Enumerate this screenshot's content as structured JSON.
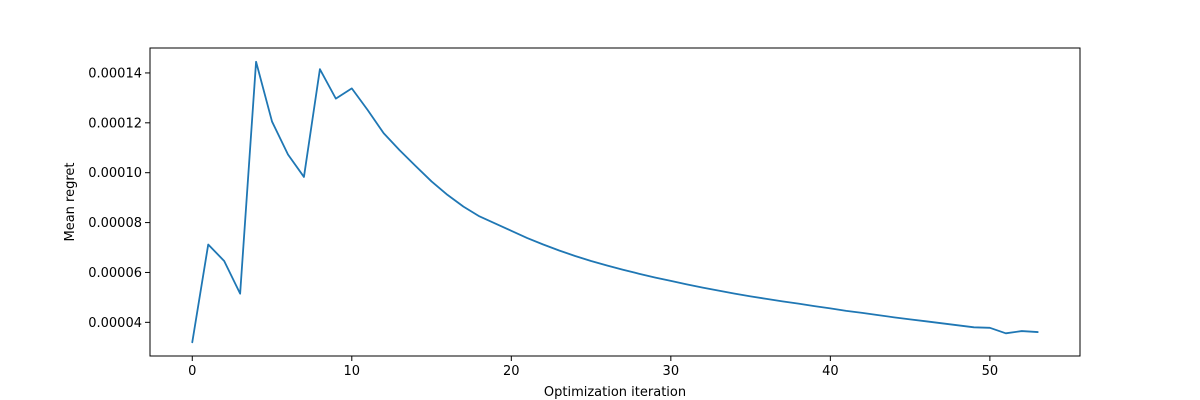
{
  "chart_data": {
    "type": "line",
    "title": "",
    "xlabel": "Optimization iteration",
    "ylabel": "Mean regret",
    "xlim": [
      -2.65,
      55.65
    ],
    "ylim": [
      2.65e-05,
      0.00015
    ],
    "xticks": [
      0,
      10,
      20,
      30,
      40,
      50
    ],
    "xtick_labels": [
      "0",
      "10",
      "20",
      "30",
      "40",
      "50"
    ],
    "yticks": [
      4e-05,
      6e-05,
      8e-05,
      0.0001,
      0.00012,
      0.00014
    ],
    "ytick_labels": [
      "0.00004",
      "0.00006",
      "0.00008",
      "0.00010",
      "0.00012",
      "0.00014"
    ],
    "grid": false,
    "legend": false,
    "series": [
      {
        "color": "#1f77b4",
        "x": [
          0,
          1,
          2,
          3,
          4,
          5,
          6,
          7,
          8,
          9,
          10,
          11,
          12,
          13,
          14,
          15,
          16,
          17,
          18,
          19,
          20,
          21,
          22,
          23,
          24,
          25,
          26,
          27,
          28,
          29,
          30,
          31,
          32,
          33,
          34,
          35,
          36,
          37,
          38,
          39,
          40,
          41,
          42,
          43,
          44,
          45,
          46,
          47,
          48,
          49,
          50,
          51,
          52,
          53
        ],
        "y": [
          3.2e-05,
          7.12e-05,
          6.46e-05,
          5.15e-05,
          0.0001445,
          0.0001205,
          0.0001073,
          9.83e-05,
          0.0001415,
          0.0001297,
          0.0001338,
          0.0001251,
          0.0001158,
          0.000109,
          0.0001027,
          9.65e-05,
          9.11e-05,
          8.64e-05,
          8.25e-05,
          7.96e-05,
          7.67e-05,
          7.38e-05,
          7.12e-05,
          6.88e-05,
          6.66e-05,
          6.46e-05,
          6.28e-05,
          6.11e-05,
          5.95e-05,
          5.8e-05,
          5.66e-05,
          5.52e-05,
          5.39e-05,
          5.27e-05,
          5.15e-05,
          5.04e-05,
          4.94e-05,
          4.84e-05,
          4.75e-05,
          4.65e-05,
          4.56e-05,
          4.46e-05,
          4.38e-05,
          4.29e-05,
          4.2e-05,
          4.12e-05,
          4.04e-05,
          3.96e-05,
          3.88e-05,
          3.8e-05,
          3.78e-05,
          3.56e-05,
          3.65e-05,
          3.61e-05
        ]
      }
    ]
  }
}
